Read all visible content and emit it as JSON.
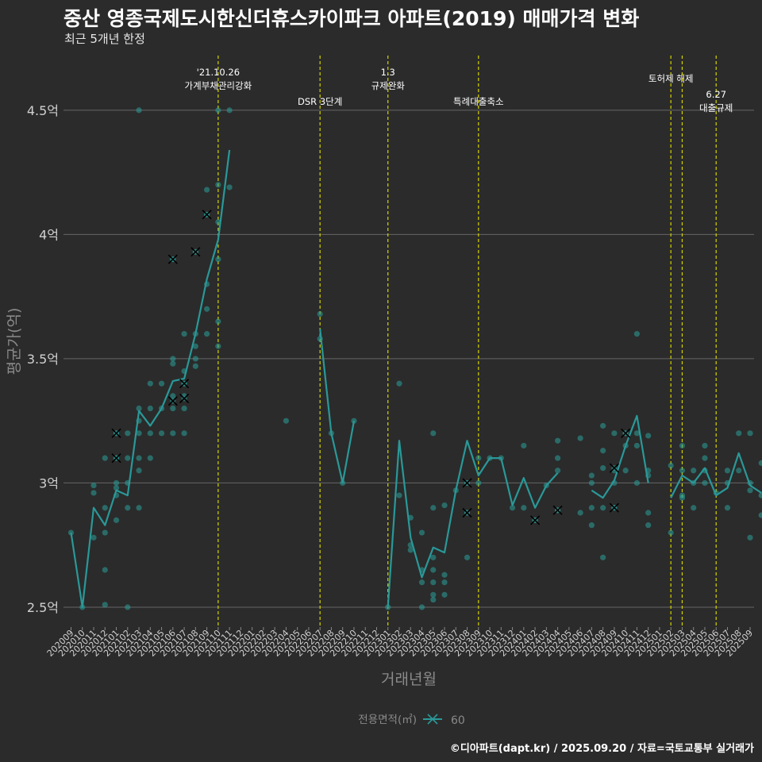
{
  "header": {
    "title": "중산 영종국제도시한신더휴스카이파크 아파트(2019) 매매가격 변화",
    "subtitle": "최근 5개년 한정"
  },
  "footer": {
    "caption": "©디아파트(dapt.kr) / 2025.09.20 / 자료=국토교통부 실거래가"
  },
  "colors": {
    "line": "#2a9898",
    "point": "#2aa19b",
    "vline": "#d4d400",
    "grid": "#666666",
    "bg": "#2b2b2b"
  },
  "chart_data": {
    "type": "line",
    "xlabel": "거래년월",
    "ylabel": "평균가(억)",
    "ylim": [
      2.42,
      4.72
    ],
    "yticks": [
      {
        "v": 2.5,
        "label": "2.5억"
      },
      {
        "v": 3.0,
        "label": "3억"
      },
      {
        "v": 3.5,
        "label": "3.5억"
      },
      {
        "v": 4.0,
        "label": "4억"
      },
      {
        "v": 4.5,
        "label": "4.5억"
      }
    ],
    "categories": [
      "202009",
      "202010",
      "202011",
      "202012",
      "202101",
      "202102",
      "202103",
      "202104",
      "202105",
      "202106",
      "202107",
      "202108",
      "202109",
      "202110",
      "202111",
      "202112",
      "202201",
      "202202",
      "202203",
      "202204",
      "202205",
      "202206",
      "202207",
      "202208",
      "202209",
      "202210",
      "202211",
      "202212",
      "202301",
      "202302",
      "202303",
      "202304",
      "202305",
      "202306",
      "202307",
      "202308",
      "202309",
      "202310",
      "202311",
      "202312",
      "202401",
      "202402",
      "202403",
      "202404",
      "202405",
      "202406",
      "202407",
      "202408",
      "202409",
      "202410",
      "202411",
      "202412",
      "202501",
      "202502",
      "202503",
      "202504",
      "202505",
      "202506",
      "202507",
      "202508",
      "202509"
    ],
    "legend": {
      "title": "전용면적(㎡)",
      "entries": [
        "60"
      ]
    },
    "series": [
      {
        "name": "60",
        "average": [
          [
            0,
            2.8
          ],
          [
            1,
            2.5
          ],
          [
            2,
            2.9
          ],
          [
            3,
            2.83
          ],
          [
            4,
            2.97
          ],
          [
            5,
            2.95
          ],
          [
            6,
            3.29
          ],
          [
            7,
            3.23
          ],
          [
            8,
            3.3
          ],
          [
            9,
            3.41
          ],
          [
            10,
            3.42
          ],
          [
            11,
            3.6
          ],
          [
            12,
            3.82
          ],
          [
            13,
            3.98
          ],
          [
            14,
            4.34
          ],
          null,
          [
            22,
            3.62
          ],
          [
            23,
            3.2
          ],
          [
            24,
            3.0
          ],
          [
            25,
            3.25
          ],
          null,
          [
            28,
            2.5
          ],
          [
            29,
            3.17
          ],
          [
            30,
            2.78
          ],
          [
            31,
            2.62
          ],
          [
            32,
            2.74
          ],
          [
            33,
            2.72
          ],
          [
            34,
            2.97
          ],
          [
            35,
            3.17
          ],
          [
            36,
            3.03
          ],
          [
            37,
            3.1
          ],
          [
            38,
            3.1
          ],
          [
            39,
            2.91
          ],
          [
            40,
            3.02
          ],
          [
            41,
            2.9
          ],
          [
            42,
            2.99
          ],
          [
            43,
            3.04
          ],
          null,
          [
            46,
            2.97
          ],
          [
            47,
            2.94
          ],
          [
            48,
            3.01
          ],
          [
            49,
            3.15
          ],
          [
            50,
            3.27
          ],
          [
            51,
            3.0
          ],
          null,
          [
            53,
            2.94
          ],
          [
            54,
            3.03
          ],
          [
            55,
            3.0
          ],
          [
            56,
            3.06
          ],
          [
            57,
            2.95
          ],
          [
            58,
            2.98
          ],
          [
            59,
            3.12
          ],
          [
            60,
            2.99
          ],
          [
            61,
            2.96
          ]
        ],
        "trades": [
          [
            0,
            2.8
          ],
          [
            1,
            2.5
          ],
          [
            2,
            2.99
          ],
          [
            2,
            2.96
          ],
          [
            2,
            2.78
          ],
          [
            3,
            3.1
          ],
          [
            3,
            2.9
          ],
          [
            3,
            2.8
          ],
          [
            3,
            2.65
          ],
          [
            3,
            2.51
          ],
          [
            4,
            3.2
          ],
          [
            4,
            3.1
          ],
          [
            4,
            3.0
          ],
          [
            4,
            2.98
          ],
          [
            4,
            2.95
          ],
          [
            4,
            2.85
          ],
          [
            5,
            3.2
          ],
          [
            5,
            3.1
          ],
          [
            5,
            3.0
          ],
          [
            5,
            2.9
          ],
          [
            5,
            2.5
          ],
          [
            6,
            4.5
          ],
          [
            6,
            3.3
          ],
          [
            6,
            3.25
          ],
          [
            6,
            3.2
          ],
          [
            6,
            3.1
          ],
          [
            6,
            3.05
          ],
          [
            6,
            2.9
          ],
          [
            7,
            3.4
          ],
          [
            7,
            3.3
          ],
          [
            7,
            3.2
          ],
          [
            7,
            3.1
          ],
          [
            8,
            3.4
          ],
          [
            8,
            3.3
          ],
          [
            8,
            3.2
          ],
          [
            9,
            3.9
          ],
          [
            9,
            3.5
          ],
          [
            9,
            3.48
          ],
          [
            9,
            3.35
          ],
          [
            9,
            3.3
          ],
          [
            9,
            3.2
          ],
          [
            10,
            3.6
          ],
          [
            10,
            3.45
          ],
          [
            10,
            3.4
          ],
          [
            10,
            3.35
          ],
          [
            10,
            3.3
          ],
          [
            10,
            3.2
          ],
          [
            11,
            3.93
          ],
          [
            11,
            3.6
          ],
          [
            11,
            3.55
          ],
          [
            11,
            3.5
          ],
          [
            11,
            3.47
          ],
          [
            12,
            4.18
          ],
          [
            12,
            4.08
          ],
          [
            12,
            3.8
          ],
          [
            12,
            3.7
          ],
          [
            12,
            3.6
          ],
          [
            13,
            4.5
          ],
          [
            13,
            4.2
          ],
          [
            13,
            4.05
          ],
          [
            13,
            3.9
          ],
          [
            13,
            3.65
          ],
          [
            13,
            3.55
          ],
          [
            14,
            4.5
          ],
          [
            14,
            4.19
          ],
          [
            19,
            3.25
          ],
          [
            22,
            3.68
          ],
          [
            22,
            3.58
          ],
          [
            23,
            3.2
          ],
          [
            24,
            3.0
          ],
          [
            25,
            3.25
          ],
          [
            28,
            2.5
          ],
          [
            29,
            3.4
          ],
          [
            29,
            2.95
          ],
          [
            30,
            2.86
          ],
          [
            30,
            2.75
          ],
          [
            30,
            2.73
          ],
          [
            31,
            2.8
          ],
          [
            31,
            2.65
          ],
          [
            31,
            2.6
          ],
          [
            31,
            2.5
          ],
          [
            32,
            3.2
          ],
          [
            32,
            2.9
          ],
          [
            32,
            2.7
          ],
          [
            32,
            2.65
          ],
          [
            32,
            2.6
          ],
          [
            32,
            2.55
          ],
          [
            32,
            2.53
          ],
          [
            33,
            2.91
          ],
          [
            33,
            2.63
          ],
          [
            33,
            2.6
          ],
          [
            33,
            2.55
          ],
          [
            34,
            2.97
          ],
          [
            35,
            3.0
          ],
          [
            35,
            2.88
          ],
          [
            35,
            2.7
          ],
          [
            36,
            3.1
          ],
          [
            36,
            3.0
          ],
          [
            37,
            3.1
          ],
          [
            38,
            3.1
          ],
          [
            39,
            2.9
          ],
          [
            40,
            3.15
          ],
          [
            40,
            2.9
          ],
          [
            41,
            2.85
          ],
          [
            42,
            2.99
          ],
          [
            43,
            3.17
          ],
          [
            43,
            3.1
          ],
          [
            43,
            3.05
          ],
          [
            43,
            2.89
          ],
          [
            45,
            3.18
          ],
          [
            45,
            2.88
          ],
          [
            46,
            3.03
          ],
          [
            46,
            3.0
          ],
          [
            46,
            2.9
          ],
          [
            46,
            2.83
          ],
          [
            47,
            3.23
          ],
          [
            47,
            3.13
          ],
          [
            47,
            3.06
          ],
          [
            47,
            2.9
          ],
          [
            47,
            2.7
          ],
          [
            48,
            3.2
          ],
          [
            48,
            3.05
          ],
          [
            48,
            3.0
          ],
          [
            48,
            2.9
          ],
          [
            49,
            3.2
          ],
          [
            49,
            3.15
          ],
          [
            49,
            3.05
          ],
          [
            50,
            3.6
          ],
          [
            50,
            3.2
          ],
          [
            50,
            3.15
          ],
          [
            50,
            3.0
          ],
          [
            51,
            3.19
          ],
          [
            51,
            3.05
          ],
          [
            51,
            3.03
          ],
          [
            51,
            2.88
          ],
          [
            51,
            2.83
          ],
          [
            53,
            3.07
          ],
          [
            53,
            2.8
          ],
          [
            54,
            3.15
          ],
          [
            54,
            3.05
          ],
          [
            54,
            2.95
          ],
          [
            54,
            2.94
          ],
          [
            55,
            3.05
          ],
          [
            55,
            3.0
          ],
          [
            55,
            2.9
          ],
          [
            56,
            3.15
          ],
          [
            56,
            3.1
          ],
          [
            56,
            3.05
          ],
          [
            56,
            3.0
          ],
          [
            57,
            2.96
          ],
          [
            58,
            3.05
          ],
          [
            58,
            3.0
          ],
          [
            58,
            2.9
          ],
          [
            59,
            3.2
          ],
          [
            59,
            3.05
          ],
          [
            60,
            3.2
          ],
          [
            60,
            3.0
          ],
          [
            60,
            2.97
          ],
          [
            60,
            2.78
          ],
          [
            61,
            3.08
          ],
          [
            61,
            2.95
          ],
          [
            61,
            2.87
          ]
        ],
        "x_marks": [
          [
            4,
            3.2
          ],
          [
            4,
            3.1
          ],
          [
            9,
            3.9
          ],
          [
            9,
            3.33
          ],
          [
            10,
            3.4
          ],
          [
            10,
            3.34
          ],
          [
            11,
            3.93
          ],
          [
            12,
            4.08
          ],
          [
            35,
            3.0
          ],
          [
            35,
            2.88
          ],
          [
            41,
            2.85
          ],
          [
            43,
            2.89
          ],
          [
            48,
            3.06
          ],
          [
            48,
            2.9
          ],
          [
            49,
            3.2
          ]
        ]
      }
    ],
    "events": [
      {
        "x": 13,
        "lines": [
          "'21.10.26",
          "가계부채관리강화"
        ],
        "level": 0
      },
      {
        "x": 22,
        "lines": [
          "DSR 3단계"
        ],
        "level": 2
      },
      {
        "x": 28,
        "lines": [
          "1.3",
          "규제완화"
        ],
        "level": 0
      },
      {
        "x": 36,
        "lines": [
          "특례대출축소"
        ],
        "level": 2
      },
      {
        "x": 53,
        "lines": [
          "토허제 해제"
        ],
        "level": 1
      },
      {
        "x": 54,
        "lines": [],
        "level": 1
      },
      {
        "x": 57,
        "lines": [
          "6.27",
          "대출규제"
        ],
        "level": 3
      }
    ]
  }
}
